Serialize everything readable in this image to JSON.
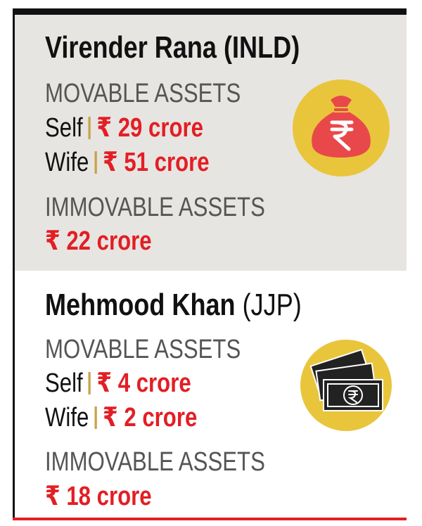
{
  "profiles": [
    {
      "name": "Virender Rana",
      "party": "(INLD)",
      "movable_heading": "MOVABLE ASSETS",
      "movable": [
        {
          "label": "Self",
          "amount": "₹ 29 crore"
        },
        {
          "label": "Wife",
          "amount": "₹ 51 crore"
        }
      ],
      "immovable_heading": "IMMOVABLE ASSETS",
      "immovable": "₹ 22 crore"
    },
    {
      "name": "Mehmood Khan",
      "party": "(JJP)",
      "movable_heading": "MOVABLE ASSETS",
      "movable": [
        {
          "label": "Self",
          "amount": "₹ 4 crore"
        },
        {
          "label": "Wife",
          "amount": "₹ 2 crore"
        }
      ],
      "immovable_heading": "IMMOVABLE ASSETS",
      "immovable": "₹ 18 crore"
    }
  ]
}
